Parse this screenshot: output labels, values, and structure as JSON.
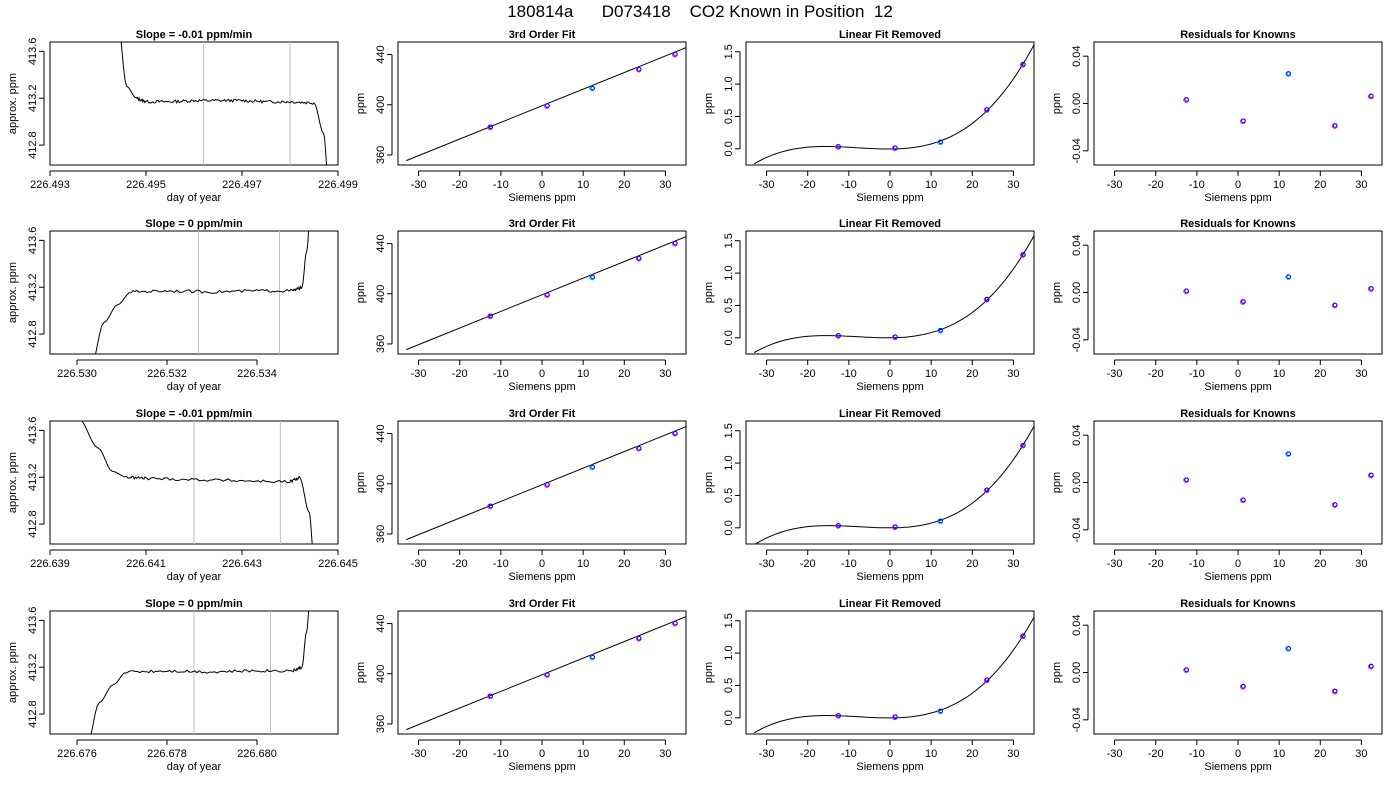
{
  "figure": {
    "title": "180814a      D073418    CO2 Known in Position  12"
  },
  "colors": {
    "axis": "#000000",
    "trace": "#000000",
    "vline": "#bfbfbf",
    "point_known": "#0000ff",
    "point_ring": "#ff00ff",
    "point_ring_alt": "#00c0ff"
  },
  "chart_data": [
    {
      "type": "line",
      "title": "Slope =  -0.01  ppm/min",
      "xlabel": "day of year",
      "ylabel": "approx. ppm",
      "xlim": [
        226.493,
        226.499
      ],
      "ylim": [
        412.63,
        413.68
      ],
      "xticks": [
        "226.493",
        "226.495",
        "226.497",
        "226.499"
      ],
      "xtick_values": [
        226.493,
        226.495,
        226.497,
        226.499
      ],
      "yticks": [
        "412.8",
        "413.2",
        "413.6"
      ],
      "ytick_values": [
        412.8,
        413.2,
        413.6
      ],
      "vlines": [
        226.4962,
        226.498
      ],
      "x": [
        226.4944,
        226.4946,
        226.4948,
        226.495,
        226.4955,
        226.496,
        226.4965,
        226.497,
        226.4975,
        226.498,
        226.4985,
        226.4987,
        226.4988
      ],
      "y": [
        413.9,
        413.3,
        413.2,
        413.17,
        413.17,
        413.18,
        413.18,
        413.18,
        413.17,
        413.17,
        413.16,
        412.9,
        412.5
      ]
    },
    {
      "type": "scatter",
      "title": "3rd Order Fit",
      "xlabel": "Siemens ppm",
      "ylabel": "ppm",
      "xlim": [
        -35,
        35
      ],
      "ylim": [
        352,
        450
      ],
      "xticks": [
        "-30",
        "-20",
        "-10",
        "0",
        "10",
        "20",
        "30"
      ],
      "xtick_values": [
        -30,
        -20,
        -10,
        0,
        10,
        20,
        30
      ],
      "yticks": [
        "360",
        "400",
        "440"
      ],
      "ytick_values": [
        360,
        400,
        440
      ],
      "x": [
        -12.6,
        1.2,
        12.2,
        23.5,
        32.3
      ],
      "y": [
        382,
        399,
        413,
        428,
        440
      ],
      "fit_x": [
        -33,
        35
      ],
      "fit_y": [
        355.5,
        445.5
      ]
    },
    {
      "type": "scatter",
      "title": "Linear Fit Removed",
      "xlabel": "Siemens ppm",
      "ylabel": "ppm",
      "xlim": [
        -35,
        35
      ],
      "ylim": [
        -0.25,
        1.65
      ],
      "xticks": [
        "-30",
        "-20",
        "-10",
        "0",
        "10",
        "20",
        "30"
      ],
      "xtick_values": [
        -30,
        -20,
        -10,
        0,
        10,
        20,
        30
      ],
      "yticks": [
        "0.0",
        "0.5",
        "1.0",
        "1.5"
      ],
      "ytick_values": [
        0.0,
        0.5,
        1.0,
        1.5
      ],
      "x": [
        -12.6,
        1.2,
        12.2,
        23.5,
        32.3
      ],
      "y": [
        0.03,
        0.01,
        0.1,
        0.6,
        1.3
      ],
      "fit_coeffs": [
        0.0004,
        0.00116,
        2.7e-05,
        0.0
      ],
      "fit_range": [
        -33,
        35
      ]
    },
    {
      "type": "scatter",
      "title": "Residuals for Knowns",
      "xlabel": "Siemens ppm",
      "ylabel": "ppm",
      "xlim": [
        -35,
        35
      ],
      "ylim": [
        -0.052,
        0.052
      ],
      "xticks": [
        "-30",
        "-20",
        "-10",
        "0",
        "10",
        "20",
        "30"
      ],
      "xtick_values": [
        -30,
        -20,
        -10,
        0,
        10,
        20,
        30
      ],
      "yticks": [
        "-0.04",
        "0.00",
        "0.04"
      ],
      "ytick_values": [
        -0.04,
        0.0,
        0.04
      ],
      "x": [
        -12.6,
        1.2,
        12.2,
        23.5,
        32.3
      ],
      "y": [
        0.003,
        -0.015,
        0.025,
        -0.019,
        0.006
      ]
    },
    {
      "type": "line",
      "title": "Slope =  0  ppm/min",
      "xlabel": "day of year",
      "ylabel": "approx. ppm",
      "xlim": [
        226.5294,
        226.5358
      ],
      "ylim": [
        412.63,
        413.68
      ],
      "xticks": [
        "226.530",
        "226.532",
        "226.534"
      ],
      "xtick_values": [
        226.53,
        226.532,
        226.534
      ],
      "yticks": [
        "412.8",
        "413.2",
        "413.6"
      ],
      "ytick_values": [
        412.8,
        413.2,
        413.6
      ],
      "vlines": [
        226.5327,
        226.5345
      ],
      "x": [
        226.5303,
        226.5306,
        226.5309,
        226.5312,
        226.532,
        226.533,
        226.534,
        226.5348,
        226.535,
        226.5351,
        226.5352
      ],
      "y": [
        412.5,
        412.9,
        413.05,
        413.16,
        413.17,
        413.16,
        413.17,
        413.17,
        413.2,
        413.5,
        413.9
      ]
    },
    {
      "type": "scatter",
      "title": "3rd Order Fit",
      "xlabel": "Siemens ppm",
      "ylabel": "ppm",
      "xlim": [
        -35,
        35
      ],
      "ylim": [
        352,
        450
      ],
      "xticks": [
        "-30",
        "-20",
        "-10",
        "0",
        "10",
        "20",
        "30"
      ],
      "xtick_values": [
        -30,
        -20,
        -10,
        0,
        10,
        20,
        30
      ],
      "yticks": [
        "360",
        "400",
        "440"
      ],
      "ytick_values": [
        360,
        400,
        440
      ],
      "x": [
        -12.6,
        1.2,
        12.2,
        23.5,
        32.3
      ],
      "y": [
        382,
        399,
        413,
        428,
        440
      ],
      "fit_x": [
        -33,
        35
      ],
      "fit_y": [
        355.5,
        445.5
      ]
    },
    {
      "type": "scatter",
      "title": "Linear Fit Removed",
      "xlabel": "Siemens ppm",
      "ylabel": "ppm",
      "xlim": [
        -35,
        35
      ],
      "ylim": [
        -0.25,
        1.65
      ],
      "xticks": [
        "-30",
        "-20",
        "-10",
        "0",
        "10",
        "20",
        "30"
      ],
      "xtick_values": [
        -30,
        -20,
        -10,
        0,
        10,
        20,
        30
      ],
      "yticks": [
        "0.0",
        "0.5",
        "1.0",
        "1.5"
      ],
      "ytick_values": [
        0.0,
        0.5,
        1.0,
        1.5
      ],
      "x": [
        -12.6,
        1.2,
        12.2,
        23.5,
        32.3
      ],
      "y": [
        0.03,
        0.01,
        0.11,
        0.59,
        1.28
      ],
      "fit_coeffs": [
        0.0004,
        0.00116,
        2.7e-05,
        0.0
      ],
      "fit_range": [
        -33,
        35
      ]
    },
    {
      "type": "scatter",
      "title": "Residuals for Knowns",
      "xlabel": "Siemens ppm",
      "ylabel": "ppm",
      "xlim": [
        -35,
        35
      ],
      "ylim": [
        -0.052,
        0.052
      ],
      "xticks": [
        "-30",
        "-20",
        "-10",
        "0",
        "10",
        "20",
        "30"
      ],
      "xtick_values": [
        -30,
        -20,
        -10,
        0,
        10,
        20,
        30
      ],
      "yticks": [
        "-0.04",
        "0.00",
        "0.04"
      ],
      "ytick_values": [
        -0.04,
        0.0,
        0.04
      ],
      "x": [
        -12.6,
        1.2,
        12.2,
        23.5,
        32.3
      ],
      "y": [
        0.001,
        -0.008,
        0.013,
        -0.011,
        0.003
      ]
    },
    {
      "type": "line",
      "title": "Slope =  -0.01  ppm/min",
      "xlabel": "day of year",
      "ylabel": "approx. ppm",
      "xlim": [
        226.639,
        226.645
      ],
      "ylim": [
        412.63,
        413.68
      ],
      "xticks": [
        "226.639",
        "226.641",
        "226.643",
        "226.645"
      ],
      "xtick_values": [
        226.639,
        226.641,
        226.643,
        226.645
      ],
      "yticks": [
        "412.8",
        "413.2",
        "413.6"
      ],
      "ytick_values": [
        412.8,
        413.2,
        413.6
      ],
      "vlines": [
        226.642,
        226.6438
      ],
      "x": [
        226.6396,
        226.64,
        226.6403,
        226.6406,
        226.641,
        226.642,
        226.643,
        226.644,
        226.6442,
        226.6444,
        226.6445
      ],
      "y": [
        413.7,
        413.45,
        413.25,
        413.2,
        413.19,
        413.18,
        413.17,
        413.16,
        413.2,
        412.9,
        412.5
      ]
    },
    {
      "type": "scatter",
      "title": "3rd Order Fit",
      "xlabel": "Siemens ppm",
      "ylabel": "ppm",
      "xlim": [
        -35,
        35
      ],
      "ylim": [
        352,
        450
      ],
      "xticks": [
        "-30",
        "-20",
        "-10",
        "0",
        "10",
        "20",
        "30"
      ],
      "xtick_values": [
        -30,
        -20,
        -10,
        0,
        10,
        20,
        30
      ],
      "yticks": [
        "360",
        "400",
        "440"
      ],
      "ytick_values": [
        360,
        400,
        440
      ],
      "x": [
        -12.6,
        1.2,
        12.2,
        23.5,
        32.3
      ],
      "y": [
        382,
        399,
        413,
        428,
        440
      ],
      "fit_x": [
        -33,
        35
      ],
      "fit_y": [
        355.5,
        445.5
      ]
    },
    {
      "type": "scatter",
      "title": "Linear Fit Removed",
      "xlabel": "Siemens ppm",
      "ylabel": "ppm",
      "xlim": [
        -35,
        35
      ],
      "ylim": [
        -0.25,
        1.65
      ],
      "xticks": [
        "-30",
        "-20",
        "-10",
        "0",
        "10",
        "20",
        "30"
      ],
      "xtick_values": [
        -30,
        -20,
        -10,
        0,
        10,
        20,
        30
      ],
      "yticks": [
        "0.0",
        "0.5",
        "1.0",
        "1.5"
      ],
      "ytick_values": [
        0.0,
        0.5,
        1.0,
        1.5
      ],
      "x": [
        -12.6,
        1.2,
        12.2,
        23.5,
        32.3
      ],
      "y": [
        0.03,
        0.01,
        0.1,
        0.58,
        1.27
      ],
      "fit_coeffs": [
        0.0004,
        0.00116,
        2.7e-05,
        0.0
      ],
      "fit_range": [
        -33,
        35
      ]
    },
    {
      "type": "scatter",
      "title": "Residuals for Knowns",
      "xlabel": "Siemens ppm",
      "ylabel": "ppm",
      "xlim": [
        -35,
        35
      ],
      "ylim": [
        -0.052,
        0.052
      ],
      "xticks": [
        "-30",
        "-20",
        "-10",
        "0",
        "10",
        "20",
        "30"
      ],
      "xtick_values": [
        -30,
        -20,
        -10,
        0,
        10,
        20,
        30
      ],
      "yticks": [
        "-0.04",
        "0.00",
        "0.04"
      ],
      "ytick_values": [
        -0.04,
        0.0,
        0.04
      ],
      "x": [
        -12.6,
        1.2,
        12.2,
        23.5,
        32.3
      ],
      "y": [
        0.002,
        -0.015,
        0.024,
        -0.019,
        0.006
      ]
    },
    {
      "type": "line",
      "title": "Slope =  0  ppm/min",
      "xlabel": "day of year",
      "ylabel": "approx. ppm",
      "xlim": [
        226.6754,
        226.6818
      ],
      "ylim": [
        412.63,
        413.68
      ],
      "xticks": [
        "226.676",
        "226.678",
        "226.680"
      ],
      "xtick_values": [
        226.676,
        226.678,
        226.68
      ],
      "yticks": [
        "412.8",
        "413.2",
        "413.6"
      ],
      "ytick_values": [
        412.8,
        413.2,
        413.6
      ],
      "vlines": [
        226.6786,
        226.6803
      ],
      "x": [
        226.6762,
        226.6765,
        226.6768,
        226.6771,
        226.678,
        226.679,
        226.68,
        226.6808,
        226.681,
        226.6811,
        226.6812
      ],
      "y": [
        412.5,
        412.9,
        413.05,
        413.16,
        413.17,
        413.16,
        413.17,
        413.17,
        413.2,
        413.5,
        413.9
      ]
    },
    {
      "type": "scatter",
      "title": "3rd Order Fit",
      "xlabel": "Siemens ppm",
      "ylabel": "ppm",
      "xlim": [
        -35,
        35
      ],
      "ylim": [
        352,
        450
      ],
      "xticks": [
        "-30",
        "-20",
        "-10",
        "0",
        "10",
        "20",
        "30"
      ],
      "xtick_values": [
        -30,
        -20,
        -10,
        0,
        10,
        20,
        30
      ],
      "yticks": [
        "360",
        "400",
        "440"
      ],
      "ytick_values": [
        360,
        400,
        440
      ],
      "x": [
        -12.6,
        1.2,
        12.2,
        23.5,
        32.3
      ],
      "y": [
        382,
        399,
        413,
        428,
        440
      ],
      "fit_x": [
        -33,
        35
      ],
      "fit_y": [
        355.5,
        445.5
      ]
    },
    {
      "type": "scatter",
      "title": "Linear Fit Removed",
      "xlabel": "Siemens ppm",
      "ylabel": "ppm",
      "xlim": [
        -35,
        35
      ],
      "ylim": [
        -0.25,
        1.65
      ],
      "xticks": [
        "-30",
        "-20",
        "-10",
        "0",
        "10",
        "20",
        "30"
      ],
      "xtick_values": [
        -30,
        -20,
        -10,
        0,
        10,
        20,
        30
      ],
      "yticks": [
        "0.0",
        "0.5",
        "1.0",
        "1.5"
      ],
      "ytick_values": [
        0.0,
        0.5,
        1.0,
        1.5
      ],
      "x": [
        -12.6,
        1.2,
        12.2,
        23.5,
        32.3
      ],
      "y": [
        0.03,
        0.01,
        0.1,
        0.58,
        1.26
      ],
      "fit_coeffs": [
        0.0004,
        0.00116,
        2.7e-05,
        0.0
      ],
      "fit_range": [
        -33,
        35
      ]
    },
    {
      "type": "scatter",
      "title": "Residuals for Knowns",
      "xlabel": "Siemens ppm",
      "ylabel": "ppm",
      "xlim": [
        -35,
        35
      ],
      "ylim": [
        -0.052,
        0.052
      ],
      "xticks": [
        "-30",
        "-20",
        "-10",
        "0",
        "10",
        "20",
        "30"
      ],
      "xtick_values": [
        -30,
        -20,
        -10,
        0,
        10,
        20,
        30
      ],
      "yticks": [
        "-0.04",
        "0.00",
        "0.04"
      ],
      "ytick_values": [
        -0.04,
        0.0,
        0.04
      ],
      "x": [
        -12.6,
        1.2,
        12.2,
        23.5,
        32.3
      ],
      "y": [
        0.002,
        -0.012,
        0.02,
        -0.016,
        0.005
      ]
    }
  ]
}
